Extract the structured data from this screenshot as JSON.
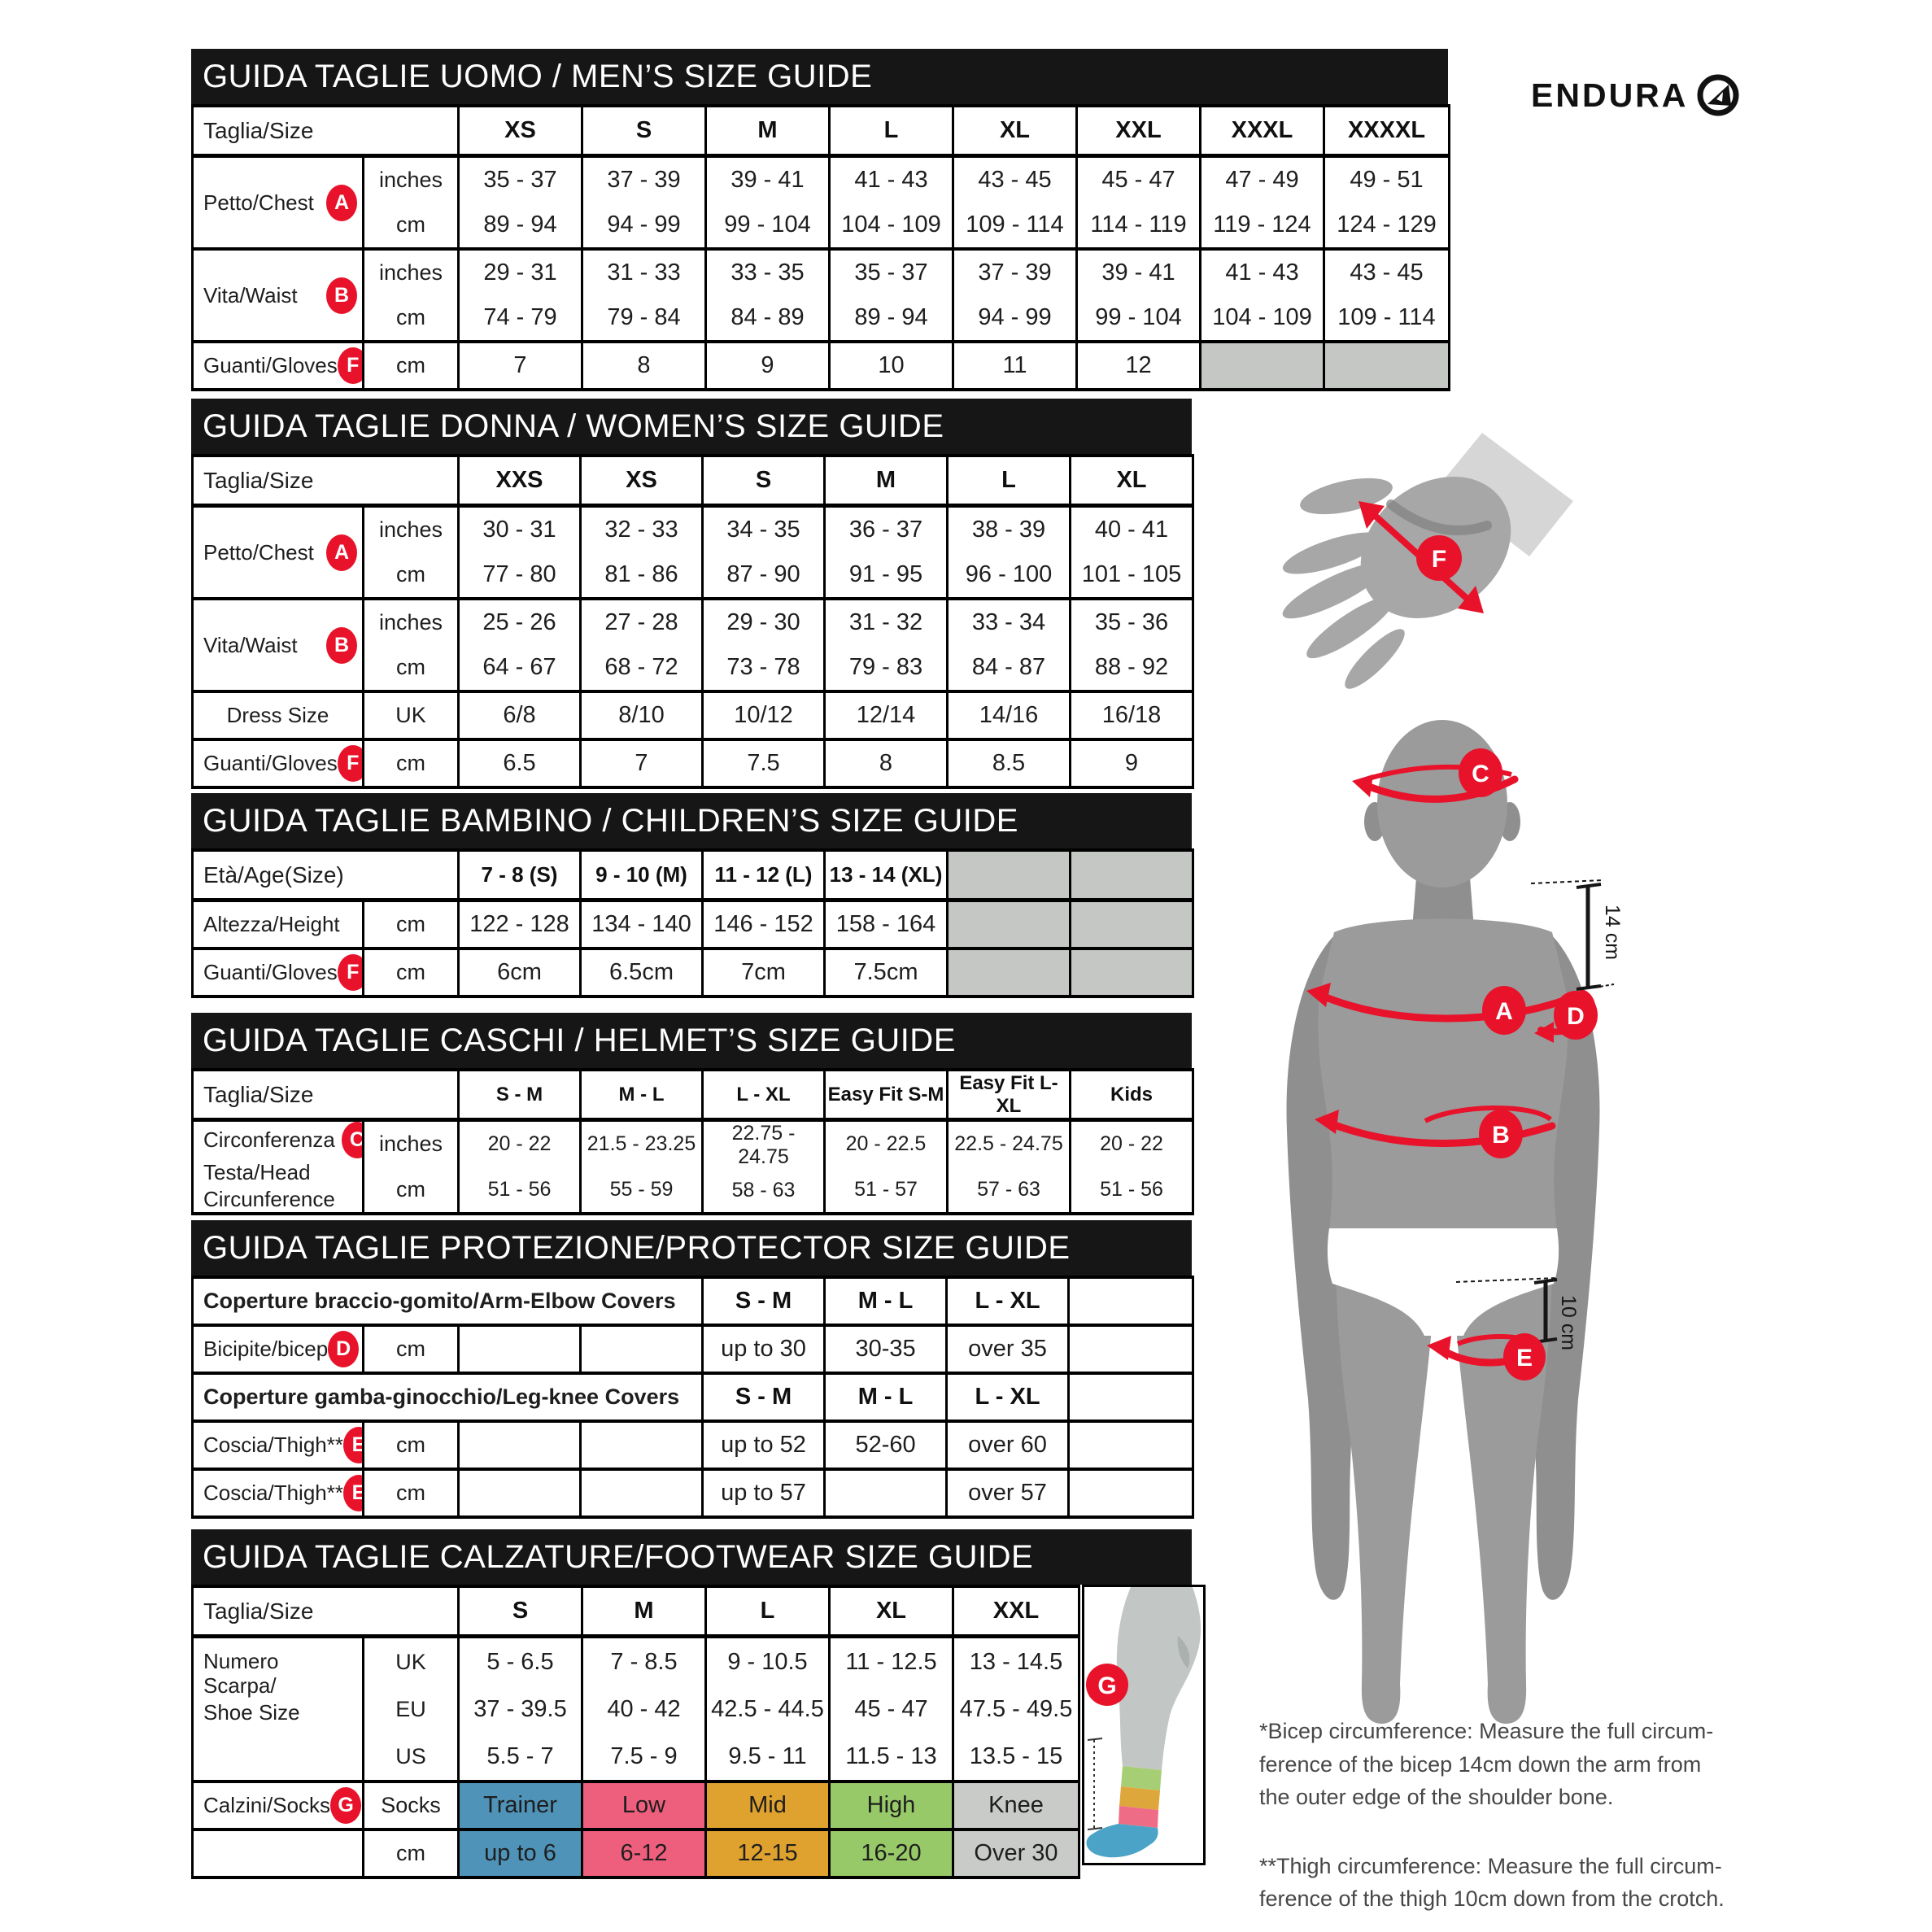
{
  "brand": {
    "name": "ENDURA"
  },
  "colors": {
    "accent_red": "#e8132b",
    "bar_black": "#161616",
    "cell_gray": "#c5c7c5",
    "sock_trainer": "#4f93b8",
    "sock_low": "#ee5f7e",
    "sock_mid": "#dfa22f",
    "sock_high": "#97c968",
    "sock_knee": "#c9cbc9"
  },
  "tables": [
    {
      "id": "men",
      "title": "GUIDA TAGLIE UOMO / MEN’S SIZE GUIDE",
      "rows": [
        {
          "kind": "header",
          "cells": [
            {
              "t": "Taglia/Size",
              "span": 2,
              "head_label": true
            },
            {
              "t": "XS",
              "head": true
            },
            {
              "t": "S",
              "head": true
            },
            {
              "t": "M",
              "head": true
            },
            {
              "t": "L",
              "head": true
            },
            {
              "t": "XL",
              "head": true
            },
            {
              "t": "XXL",
              "head": true
            },
            {
              "t": "XXXL",
              "head": true
            },
            {
              "t": "XXXXL",
              "head": true
            }
          ]
        },
        {
          "kind": "double",
          "cells": [
            {
              "label": "Petto/Chest",
              "badge": "A"
            },
            {
              "stack": [
                "inches",
                "cm"
              ],
              "unit": true
            },
            {
              "stack": [
                "35 - 37",
                "89 - 94"
              ]
            },
            {
              "stack": [
                "37 - 39",
                "94 - 99"
              ]
            },
            {
              "stack": [
                "39 - 41",
                "99 - 104"
              ]
            },
            {
              "stack": [
                "41 - 43",
                "104 - 109"
              ]
            },
            {
              "stack": [
                "43 - 45",
                "109 - 114"
              ]
            },
            {
              "stack": [
                "45 - 47",
                "114 - 119"
              ]
            },
            {
              "stack": [
                "47 - 49",
                "119 - 124"
              ]
            },
            {
              "stack": [
                "49 - 51",
                "124 - 129"
              ]
            }
          ]
        },
        {
          "kind": "double",
          "cells": [
            {
              "label": "Vita/Waist",
              "badge": "B"
            },
            {
              "stack": [
                "inches",
                "cm"
              ],
              "unit": true
            },
            {
              "stack": [
                "29 - 31",
                "74 - 79"
              ]
            },
            {
              "stack": [
                "31 - 33",
                "79 - 84"
              ]
            },
            {
              "stack": [
                "33 - 35",
                "84 - 89"
              ]
            },
            {
              "stack": [
                "35 - 37",
                "89 - 94"
              ]
            },
            {
              "stack": [
                "37 - 39",
                "94 - 99"
              ]
            },
            {
              "stack": [
                "39 - 41",
                "99 - 104"
              ]
            },
            {
              "stack": [
                "41 - 43",
                "104 - 109"
              ]
            },
            {
              "stack": [
                "43 - 45",
                "109 - 114"
              ]
            }
          ]
        },
        {
          "kind": "single",
          "cells": [
            {
              "label": "Guanti/Gloves",
              "badge": "F"
            },
            {
              "t": "cm",
              "unit": true
            },
            {
              "t": "7"
            },
            {
              "t": "8"
            },
            {
              "t": "9"
            },
            {
              "t": "10"
            },
            {
              "t": "11"
            },
            {
              "t": "12"
            },
            {
              "gray": true
            },
            {
              "gray": true
            }
          ]
        }
      ]
    },
    {
      "id": "women",
      "title": "GUIDA TAGLIE DONNA / WOMEN’S SIZE GUIDE",
      "rows": [
        {
          "kind": "header",
          "cells": [
            {
              "t": "Taglia/Size",
              "span": 2,
              "head_label": true
            },
            {
              "t": "XXS",
              "head": true
            },
            {
              "t": "XS",
              "head": true
            },
            {
              "t": "S",
              "head": true
            },
            {
              "t": "M",
              "head": true
            },
            {
              "t": "L",
              "head": true
            },
            {
              "t": "XL",
              "head": true
            }
          ]
        },
        {
          "kind": "double",
          "cells": [
            {
              "label": "Petto/Chest",
              "badge": "A"
            },
            {
              "stack": [
                "inches",
                "cm"
              ],
              "unit": true
            },
            {
              "stack": [
                "30 - 31",
                "77 - 80"
              ]
            },
            {
              "stack": [
                "32 - 33",
                "81 - 86"
              ]
            },
            {
              "stack": [
                "34 - 35",
                "87 - 90"
              ]
            },
            {
              "stack": [
                "36 - 37",
                "91 - 95"
              ]
            },
            {
              "stack": [
                "38 - 39",
                "96 - 100"
              ]
            },
            {
              "stack": [
                "40 - 41",
                "101 - 105"
              ]
            }
          ]
        },
        {
          "kind": "double",
          "cells": [
            {
              "label": "Vita/Waist",
              "badge": "B"
            },
            {
              "stack": [
                "inches",
                "cm"
              ],
              "unit": true
            },
            {
              "stack": [
                "25 - 26",
                "64 - 67"
              ]
            },
            {
              "stack": [
                "27 - 28",
                "68 - 72"
              ]
            },
            {
              "stack": [
                "29 - 30",
                "73 - 78"
              ]
            },
            {
              "stack": [
                "31 - 32",
                "79 - 83"
              ]
            },
            {
              "stack": [
                "33 - 34",
                "84 - 87"
              ]
            },
            {
              "stack": [
                "35 - 36",
                "88 - 92"
              ]
            }
          ]
        },
        {
          "kind": "single",
          "cells": [
            {
              "label": "Dress Size",
              "center": true
            },
            {
              "t": "UK",
              "unit": true
            },
            {
              "t": "6/8"
            },
            {
              "t": "8/10"
            },
            {
              "t": "10/12"
            },
            {
              "t": "12/14"
            },
            {
              "t": "14/16"
            },
            {
              "t": "16/18"
            }
          ]
        },
        {
          "kind": "single",
          "cells": [
            {
              "label": "Guanti/Gloves",
              "badge": "F"
            },
            {
              "t": "cm",
              "unit": true
            },
            {
              "t": "6.5"
            },
            {
              "t": "7"
            },
            {
              "t": "7.5"
            },
            {
              "t": "8"
            },
            {
              "t": "8.5"
            },
            {
              "t": "9"
            }
          ]
        }
      ]
    },
    {
      "id": "children",
      "title": "GUIDA TAGLIE BAMBINO / CHILDREN’S SIZE GUIDE",
      "rows": [
        {
          "kind": "header",
          "cells": [
            {
              "t": "Età/Age(Size)",
              "span": 2,
              "head_label": true
            },
            {
              "t": "7 - 8 (S)",
              "head": true
            },
            {
              "t": "9 - 10 (M)",
              "head": true
            },
            {
              "t": "11 - 12 (L)",
              "head": true
            },
            {
              "t": "13 - 14 (XL)",
              "head": true
            },
            {
              "gray": true
            },
            {
              "gray": true
            }
          ]
        },
        {
          "kind": "single",
          "cells": [
            {
              "label": "Altezza/Height"
            },
            {
              "t": "cm",
              "unit": true
            },
            {
              "t": "122 - 128"
            },
            {
              "t": "134 - 140"
            },
            {
              "t": "146 - 152"
            },
            {
              "t": "158 - 164"
            },
            {
              "gray": true
            },
            {
              "gray": true
            }
          ]
        },
        {
          "kind": "single",
          "cells": [
            {
              "label": "Guanti/Gloves",
              "badge": "F"
            },
            {
              "t": "cm",
              "unit": true
            },
            {
              "t": "6cm"
            },
            {
              "t": "6.5cm"
            },
            {
              "t": "7cm"
            },
            {
              "t": "7.5cm"
            },
            {
              "gray": true
            },
            {
              "gray": true
            }
          ]
        }
      ]
    },
    {
      "id": "helmet",
      "title": "GUIDA TAGLIE CASCHI / HELMET’S SIZE GUIDE",
      "rows": [
        {
          "kind": "header",
          "cells": [
            {
              "t": "Taglia/Size",
              "span": 2,
              "head_label": true
            },
            {
              "t": "S - M",
              "head": true
            },
            {
              "t": "M - L",
              "head": true
            },
            {
              "t": "L - XL",
              "head": true
            },
            {
              "t": "Easy Fit S-M",
              "head": true
            },
            {
              "t": "Easy Fit L-XL",
              "head": true
            },
            {
              "t": "Kids",
              "head": true
            }
          ]
        },
        {
          "kind": "double",
          "cells": [
            {
              "label_lines": [
                "Circonferenza",
                "Testa/Head",
                "Circunference"
              ],
              "badge": "C",
              "badge_line": 0
            },
            {
              "stack": [
                "inches",
                "cm"
              ],
              "unit": true
            },
            {
              "stack": [
                "20 - 22",
                "51 - 56"
              ]
            },
            {
              "stack": [
                "21.5 - 23.25",
                "55 - 59"
              ]
            },
            {
              "stack": [
                "22.75 - 24.75",
                "58 - 63"
              ]
            },
            {
              "stack": [
                "20 - 22.5",
                "51 - 57"
              ]
            },
            {
              "stack": [
                "22.5 - 24.75",
                "57 - 63"
              ]
            },
            {
              "stack": [
                "20 - 22",
                "51 - 56"
              ]
            }
          ]
        }
      ]
    },
    {
      "id": "protector",
      "title": "GUIDA TAGLIE PROTEZIONE/PROTECTOR SIZE GUIDE",
      "rows": [
        {
          "kind": "single",
          "cells": [
            {
              "t": "Coperture braccio-gomito/Arm-Elbow Covers",
              "span": 4,
              "head_label": true,
              "bold": true
            },
            {
              "t": "S - M",
              "head": true
            },
            {
              "t": "M - L",
              "head": true
            },
            {
              "t": "L - XL",
              "head": true
            },
            {
              "t": ""
            }
          ]
        },
        {
          "kind": "single",
          "cells": [
            {
              "label": "Bicipite/bicep",
              "badge": "D"
            },
            {
              "t": "cm",
              "unit": true
            },
            {
              "t": ""
            },
            {
              "t": ""
            },
            {
              "t": "up to 30"
            },
            {
              "t": "30-35"
            },
            {
              "t": "over 35"
            },
            {
              "t": ""
            }
          ]
        },
        {
          "kind": "single",
          "cells": [
            {
              "t": "Coperture gamba-ginocchio/Leg-knee Covers",
              "span": 4,
              "head_label": true,
              "bold": true
            },
            {
              "t": "S - M",
              "head": true
            },
            {
              "t": "M - L",
              "head": true
            },
            {
              "t": "L - XL",
              "head": true
            },
            {
              "t": ""
            }
          ]
        },
        {
          "kind": "single",
          "cells": [
            {
              "label": "Coscia/Thigh**",
              "badge": "E"
            },
            {
              "t": "cm",
              "unit": true
            },
            {
              "t": ""
            },
            {
              "t": ""
            },
            {
              "t": "up to 52"
            },
            {
              "t": "52-60"
            },
            {
              "t": "over 60"
            },
            {
              "t": ""
            }
          ]
        },
        {
          "kind": "single",
          "cells": [
            {
              "label": "Coscia/Thigh**",
              "badge": "E"
            },
            {
              "t": "cm",
              "unit": true
            },
            {
              "t": ""
            },
            {
              "t": ""
            },
            {
              "t": "up to 57"
            },
            {
              "t": ""
            },
            {
              "t": "over 57"
            },
            {
              "t": ""
            }
          ]
        }
      ]
    },
    {
      "id": "footwear",
      "title": "GUIDA TAGLIE CALZATURE/FOOTWEAR SIZE GUIDE",
      "rows": [
        {
          "kind": "header",
          "cells": [
            {
              "t": "Taglia/Size",
              "span": 2,
              "head_label": true
            },
            {
              "t": "S",
              "head": true
            },
            {
              "t": "M",
              "head": true
            },
            {
              "t": "L",
              "head": true
            },
            {
              "t": "XL",
              "head": true
            },
            {
              "t": "XXL",
              "head": true
            }
          ]
        },
        {
          "kind": "triple",
          "cells": [
            {
              "label_lines": [
                "Numero Scarpa/",
                "Shoe Size"
              ],
              "valign": "top"
            },
            {
              "stack": [
                "UK",
                "EU",
                "US"
              ],
              "unit": true
            },
            {
              "stack": [
                "5 - 6.5",
                "37 - 39.5",
                "5.5 - 7"
              ]
            },
            {
              "stack": [
                "7 - 8.5",
                "40 - 42",
                "7.5 - 9"
              ]
            },
            {
              "stack": [
                "9 - 10.5",
                "42.5 - 44.5",
                "9.5 - 11"
              ]
            },
            {
              "stack": [
                "11 - 12.5",
                "45 - 47",
                "11.5 - 13"
              ]
            },
            {
              "stack": [
                "13 - 14.5",
                "47.5 - 49.5",
                "13.5 - 15"
              ]
            }
          ]
        },
        {
          "kind": "single",
          "cells": [
            {
              "label": "Calzini/Socks",
              "badge": "G"
            },
            {
              "t": "Socks",
              "unit": true
            },
            {
              "t": "Trainer",
              "bg": "sock_trainer"
            },
            {
              "t": "Low",
              "bg": "sock_low"
            },
            {
              "t": "Mid",
              "bg": "sock_mid"
            },
            {
              "t": "High",
              "bg": "sock_high"
            },
            {
              "t": "Knee",
              "bg": "sock_knee"
            }
          ]
        },
        {
          "kind": "single",
          "cells": [
            {
              "t": ""
            },
            {
              "t": "cm",
              "unit": true
            },
            {
              "t": "up to 6",
              "bg": "sock_trainer"
            },
            {
              "t": "6-12",
              "bg": "sock_low"
            },
            {
              "t": "12-15",
              "bg": "sock_mid"
            },
            {
              "t": "16-20",
              "bg": "sock_high"
            },
            {
              "t": "Over 30",
              "bg": "sock_knee"
            }
          ]
        }
      ]
    }
  ],
  "diagram": {
    "markers": {
      "chest": "A",
      "waist": "B",
      "head": "C",
      "bicep": "D",
      "thigh": "E",
      "hand": "F",
      "sock": "G"
    },
    "dim_bicep": "14 cm",
    "dim_thigh": "10 cm"
  },
  "footnotes": {
    "bicep": "*Bicep circumference: Measure the full circum-\nference of the bicep 14cm down the arm from\nthe outer edge of the shoulder bone.",
    "thigh": "**Thigh circumference: Measure the full circum-\nference of the thigh 10cm down from the crotch."
  }
}
